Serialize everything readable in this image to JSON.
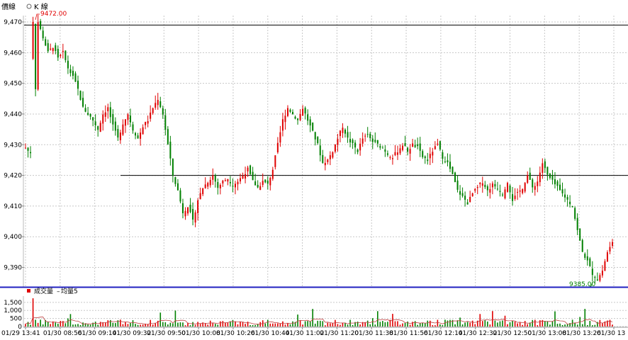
{
  "chart_data": {
    "type": "candlestick",
    "header": {
      "tab_1": "價線",
      "tab_2": "K 線"
    },
    "price_axis": {
      "ticks": [
        "9,470",
        "9,460",
        "9,450",
        "9,440",
        "9,430",
        "9,420",
        "9,410",
        "9,400",
        "9,390"
      ],
      "ylim": [
        9383,
        9473
      ]
    },
    "reference_lines": [
      9469,
      9420
    ],
    "annotations": {
      "high": "9472.00",
      "low": "9385.00"
    },
    "volume_panel": {
      "legend_volume": "成交量",
      "legend_avg": "均量5",
      "ticks": [
        "1,500",
        "1,000",
        "500",
        "0"
      ],
      "ylim": [
        0,
        1800
      ]
    },
    "x_ticks": [
      "01/29 13:41",
      "01/30 08:56",
      "01/30 09:14",
      "01/30 09:32",
      "01/30 09:50",
      "01/30 10:08",
      "01/30 10:26",
      "01/30 10:44",
      "01/30 11:02",
      "01/30 11:20",
      "01/30 11:38",
      "01/30 11:56",
      "01/30 12:14",
      "01/30 12:32",
      "01/30 12:50",
      "01/30 13:08",
      "01/30 13:26",
      "01/30 13"
    ],
    "price_path": [
      9430,
      9428,
      9427,
      9470,
      9465,
      9460,
      9462,
      9458,
      9460,
      9455,
      9452,
      9448,
      9442,
      9440,
      9438,
      9435,
      9440,
      9442,
      9436,
      9432,
      9437,
      9440,
      9435,
      9432,
      9436,
      9438,
      9442,
      9445,
      9440,
      9430,
      9420,
      9415,
      9408,
      9410,
      9405,
      9412,
      9416,
      9418,
      9420,
      9416,
      9418,
      9419,
      9417,
      9418,
      9420,
      9422,
      9418,
      9416,
      9418,
      9417,
      9422,
      9430,
      9438,
      9442,
      9440,
      9438,
      9442,
      9438,
      9434,
      9430,
      9424,
      9425,
      9428,
      9432,
      9436,
      9432,
      9430,
      9428,
      9432,
      9433,
      9431,
      9430,
      9429,
      9427,
      9426,
      9428,
      9430,
      9428,
      9430,
      9429,
      9426,
      9425,
      9428,
      9430,
      9426,
      9424,
      9420,
      9415,
      9413,
      9411,
      9414,
      9416,
      9418,
      9415,
      9417,
      9416,
      9414,
      9418,
      9412,
      9414,
      9416,
      9420,
      9416,
      9418,
      9424,
      9420,
      9418,
      9416,
      9414,
      9412,
      9410,
      9402,
      9395,
      9392,
      9388,
      9386,
      9389,
      9395,
      9398
    ]
  }
}
